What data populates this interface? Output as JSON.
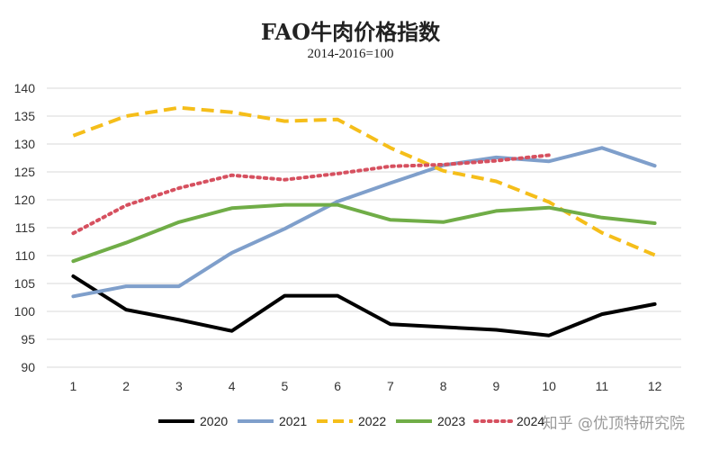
{
  "chart_data": {
    "type": "line",
    "title": "FAO牛肉价格指数",
    "subtitle": "2014-2016=100",
    "xlabel": "",
    "ylabel": "",
    "categories": [
      "1",
      "2",
      "3",
      "4",
      "5",
      "6",
      "7",
      "8",
      "9",
      "10",
      "11",
      "12"
    ],
    "ylim": [
      90,
      140
    ],
    "yticks": [
      90,
      95,
      100,
      105,
      110,
      115,
      120,
      125,
      130,
      135,
      140
    ],
    "grid": true,
    "legend_position": "bottom",
    "series": [
      {
        "name": "2020",
        "color": "#000000",
        "style": "solid",
        "values": [
          106.3,
          100.3,
          98.5,
          96.5,
          102.8,
          102.8,
          97.7,
          97.2,
          96.7,
          95.7,
          99.5,
          101.3
        ]
      },
      {
        "name": "2021",
        "color": "#7F9FCB",
        "style": "solid",
        "values": [
          102.7,
          104.5,
          104.5,
          110.5,
          114.8,
          119.7,
          123.0,
          126.2,
          127.6,
          126.9,
          129.3,
          126.1
        ]
      },
      {
        "name": "2022",
        "color": "#F5BE1A",
        "style": "dashed",
        "values": [
          131.5,
          135.0,
          136.5,
          135.7,
          134.1,
          134.4,
          129.3,
          125.2,
          123.3,
          119.6,
          114.1,
          110.1
        ]
      },
      {
        "name": "2023",
        "color": "#70AD47",
        "style": "solid",
        "values": [
          109.0,
          112.3,
          116.0,
          118.5,
          119.1,
          119.1,
          116.4,
          116.0,
          118.0,
          118.6,
          116.8,
          115.8
        ]
      },
      {
        "name": "2024",
        "color": "#D6505F",
        "style": "dotted",
        "values": [
          114.0,
          119.0,
          122.1,
          124.4,
          123.6,
          124.7,
          126.0,
          126.3,
          127.0,
          128.0,
          null,
          null
        ]
      }
    ]
  },
  "watermark": "知乎 @优顶特研究院"
}
